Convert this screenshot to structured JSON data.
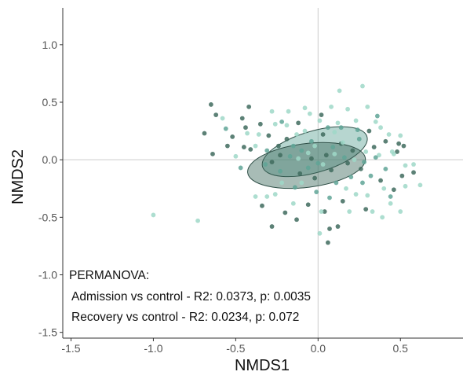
{
  "chart_data": {
    "type": "scatter",
    "title": "",
    "xlabel": "NMDS1",
    "ylabel": "NMDS2",
    "xlim": [
      -1.55,
      0.88
    ],
    "ylim": [
      -1.55,
      1.32
    ],
    "xticks": [
      -1.5,
      -1.0,
      -0.5,
      0.0,
      0.5
    ],
    "yticks": [
      -1.5,
      -1.0,
      -0.5,
      0.0,
      0.5,
      1.0
    ],
    "xtick_labels": [
      "-1.5",
      "-1.0",
      "-0.5",
      "0.0",
      "0.5"
    ],
    "ytick_labels": [
      "-1.5",
      "-1.0",
      "-0.5",
      "0.0",
      "0.5",
      "1.0"
    ],
    "zero_lines": true,
    "grid": false,
    "annotations": [
      "PERMANOVA:",
      "Admission vs control - R2: 0.0373, p: 0.0035",
      "Recovery vs control - R2: 0.0234, p: 0.072"
    ],
    "colors": {
      "dark": "#3f6b5e",
      "mid": "#5fa596",
      "light": "#9fd8c8",
      "axis": "#cccccc"
    },
    "ellipses": [
      {
        "center": [
          -0.02,
          0.07
        ],
        "rx": 0.33,
        "ry": 0.18,
        "angle": -16,
        "color": "mid"
      },
      {
        "center": [
          -0.07,
          -0.05
        ],
        "rx": 0.36,
        "ry": 0.19,
        "angle": -7,
        "color": "dark"
      }
    ],
    "series": [
      {
        "color": "dark",
        "points": [
          [
            -0.65,
            0.48
          ],
          [
            -0.62,
            0.39
          ],
          [
            -0.69,
            0.23
          ],
          [
            -0.64,
            0.05
          ],
          [
            -0.55,
            0.12
          ],
          [
            -0.52,
            0.2
          ],
          [
            -0.46,
            0.36
          ],
          [
            -0.44,
            0.28
          ],
          [
            -0.42,
            0.46
          ],
          [
            -0.35,
            0.31
          ],
          [
            -0.45,
            0.11
          ],
          [
            -0.41,
            0.09
          ],
          [
            -0.24,
            0.12
          ],
          [
            -0.19,
            0.18
          ],
          [
            -0.12,
            0.32
          ],
          [
            -0.23,
            0.04
          ],
          [
            -0.11,
            -0.12
          ],
          [
            -0.04,
            0.01
          ],
          [
            0.03,
            0.22
          ],
          [
            0.05,
            0.04
          ],
          [
            0.08,
            -0.09
          ],
          [
            0.14,
            0.14
          ],
          [
            0.18,
            -0.03
          ],
          [
            0.21,
            0.08
          ],
          [
            0.26,
            -0.08
          ],
          [
            0.31,
            0.25
          ],
          [
            0.34,
            0.11
          ],
          [
            0.38,
            -0.18
          ],
          [
            0.49,
            0.14
          ],
          [
            0.52,
            0.12
          ],
          [
            0.46,
            -0.26
          ],
          [
            0.51,
            -0.14
          ],
          [
            0.58,
            -0.11
          ],
          [
            -0.06,
            -0.39
          ],
          [
            0.04,
            -0.45
          ],
          [
            0.07,
            -0.6
          ],
          [
            0.15,
            -0.36
          ],
          [
            0.29,
            -0.43
          ],
          [
            -0.13,
            -0.52
          ],
          [
            -0.2,
            -0.46
          ],
          [
            -0.28,
            -0.58
          ],
          [
            -0.34,
            -0.4
          ],
          [
            0.12,
            -0.58
          ],
          [
            0.41,
            0.16
          ],
          [
            0.06,
            -0.72
          ],
          [
            -0.28,
            -0.02
          ],
          [
            -0.02,
            -0.16
          ],
          [
            0.02,
            0.39
          ],
          [
            0.48,
            0.07
          ],
          [
            -0.3,
            0.21
          ]
        ]
      },
      {
        "color": "light",
        "points": [
          [
            -1.0,
            -0.48
          ],
          [
            -0.73,
            -0.53
          ],
          [
            -0.58,
            0.36
          ],
          [
            -0.5,
            0.03
          ],
          [
            -0.38,
            0.12
          ],
          [
            -0.36,
            0.22
          ],
          [
            -0.28,
            0.42
          ],
          [
            -0.26,
            0.31
          ],
          [
            -0.19,
            0.3
          ],
          [
            -0.18,
            0.42
          ],
          [
            -0.13,
            0.22
          ],
          [
            -0.08,
            0.25
          ],
          [
            -0.05,
            0.4
          ],
          [
            0.01,
            0.34
          ],
          [
            0.08,
            0.46
          ],
          [
            0.1,
            0.24
          ],
          [
            0.12,
            0.32
          ],
          [
            0.18,
            0.44
          ],
          [
            0.23,
            0.34
          ],
          [
            0.27,
            0.64
          ],
          [
            0.3,
            0.46
          ],
          [
            0.35,
            0.33
          ],
          [
            0.38,
            0.28
          ],
          [
            0.43,
            0.22
          ],
          [
            0.45,
            0.07
          ],
          [
            0.5,
            0.21
          ],
          [
            0.53,
            -0.05
          ],
          [
            0.58,
            -0.04
          ],
          [
            0.62,
            -0.22
          ],
          [
            0.53,
            -0.23
          ],
          [
            0.44,
            -0.38
          ],
          [
            0.39,
            -0.5
          ],
          [
            0.33,
            -0.45
          ],
          [
            0.3,
            -0.31
          ],
          [
            0.23,
            -0.3
          ],
          [
            0.17,
            -0.25
          ],
          [
            0.19,
            -0.45
          ],
          [
            0.15,
            0.15
          ],
          [
            0.1,
            0.05
          ],
          [
            0.03,
            -0.04
          ],
          [
            -0.06,
            0.06
          ],
          [
            -0.12,
            0.01
          ],
          [
            -0.22,
            -0.2
          ],
          [
            -0.26,
            -0.3
          ],
          [
            -0.31,
            -0.32
          ],
          [
            -0.38,
            -0.32
          ],
          [
            -0.15,
            -0.38
          ],
          [
            0.02,
            -0.45
          ],
          [
            0.01,
            -0.64
          ],
          [
            0.4,
            -0.25
          ],
          [
            0.5,
            -0.45
          ],
          [
            0.29,
            0.07
          ],
          [
            -0.1,
            -0.2
          ],
          [
            -0.02,
            0.12
          ],
          [
            0.22,
            0.0
          ],
          [
            0.37,
            0.04
          ],
          [
            -0.08,
            0.45
          ],
          [
            0.13,
            0.6
          ],
          [
            0.46,
            0.05
          ],
          [
            -0.43,
            0.23
          ]
        ]
      },
      {
        "color": "mid",
        "points": [
          [
            -0.56,
            0.27
          ],
          [
            -0.47,
            -0.07
          ],
          [
            -0.31,
            0.08
          ],
          [
            -0.22,
            0.33
          ],
          [
            -0.15,
            0.12
          ],
          [
            -0.1,
            0.08
          ],
          [
            -0.04,
            0.16
          ],
          [
            0.0,
            -0.03
          ],
          [
            0.06,
            0.28
          ],
          [
            0.09,
            0.11
          ],
          [
            0.16,
            0.02
          ],
          [
            0.25,
            0.18
          ],
          [
            0.28,
            -0.02
          ],
          [
            0.32,
            -0.14
          ],
          [
            0.35,
            0.02
          ],
          [
            0.41,
            -0.08
          ],
          [
            0.2,
            -0.15
          ],
          [
            0.11,
            -0.2
          ],
          [
            -0.01,
            -0.28
          ],
          [
            -0.14,
            -0.24
          ],
          [
            -0.23,
            -0.1
          ],
          [
            -0.17,
            0.03
          ],
          [
            0.14,
            0.28
          ],
          [
            0.36,
            0.38
          ],
          [
            0.27,
            -0.2
          ],
          [
            -0.32,
            -0.04
          ],
          [
            -0.06,
            -0.07
          ],
          [
            0.44,
            -0.32
          ],
          [
            0.07,
            -0.33
          ],
          [
            0.24,
            0.26
          ]
        ]
      }
    ]
  }
}
